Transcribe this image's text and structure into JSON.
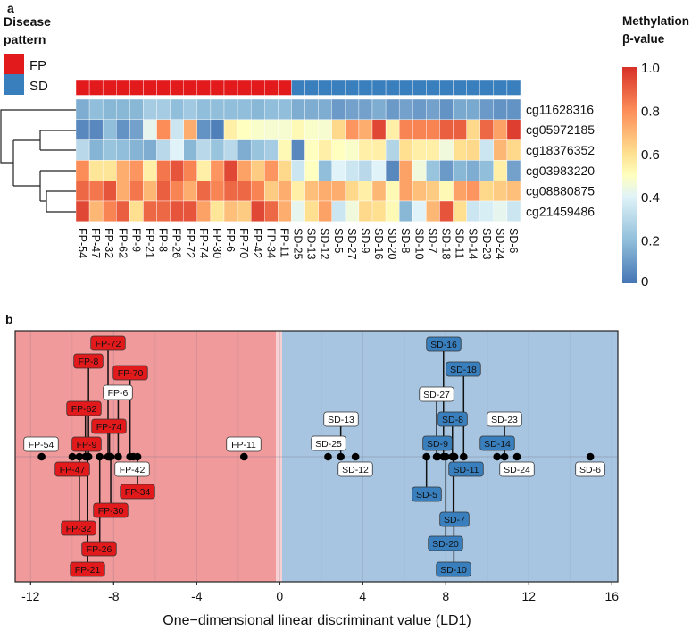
{
  "chart_data": [
    {
      "type": "heatmap",
      "panel_label": "a",
      "legend_title": [
        "Disease",
        "pattern"
      ],
      "groups": [
        {
          "name": "FP",
          "color": "#e31a1c"
        },
        {
          "name": "SD",
          "color": "#3a7fbd"
        }
      ],
      "colorbar_title": [
        "Methylation",
        "β-value"
      ],
      "colorbar_ticks": [
        "1.0",
        "0.8",
        "0.6",
        "0.4",
        "0.2",
        "0"
      ],
      "colorbar_range": [
        0,
        1
      ],
      "columns": [
        "FP-54",
        "FP-47",
        "FP-32",
        "FP-62",
        "FP-9",
        "FP-21",
        "FP-8",
        "FP-26",
        "FP-72",
        "FP-74",
        "FP-30",
        "FP-6",
        "FP-70",
        "FP-42",
        "FP-34",
        "FP-11",
        "SD-25",
        "SD-13",
        "SD-12",
        "SD-5",
        "SD-27",
        "SD-9",
        "SD-16",
        "SD-20",
        "SD-8",
        "SD-10",
        "SD-7",
        "SD-18",
        "SD-11",
        "SD-14",
        "SD-23",
        "SD-24",
        "SD-6"
      ],
      "column_groups": [
        "FP",
        "FP",
        "FP",
        "FP",
        "FP",
        "FP",
        "FP",
        "FP",
        "FP",
        "FP",
        "FP",
        "FP",
        "FP",
        "FP",
        "FP",
        "FP",
        "SD",
        "SD",
        "SD",
        "SD",
        "SD",
        "SD",
        "SD",
        "SD",
        "SD",
        "SD",
        "SD",
        "SD",
        "SD",
        "SD",
        "SD",
        "SD",
        "SD"
      ],
      "rows": [
        "cg11628316",
        "cg05972185",
        "cg18376352",
        "cg03983220",
        "cg08880875",
        "cg21459486"
      ],
      "values": [
        [
          0.15,
          0.2,
          0.18,
          0.18,
          0.18,
          0.25,
          0.25,
          0.2,
          0.24,
          0.2,
          0.2,
          0.2,
          0.2,
          0.18,
          0.2,
          0.2,
          0.15,
          0.15,
          0.15,
          0.1,
          0.12,
          0.12,
          0.15,
          0.1,
          0.12,
          0.1,
          0.12,
          0.08,
          0.14,
          0.14,
          0.1,
          0.08,
          0.08
        ],
        [
          0.05,
          0.05,
          0.2,
          0.08,
          0.12,
          0.42,
          0.8,
          0.35,
          0.72,
          0.08,
          0.03,
          0.55,
          0.5,
          0.48,
          0.47,
          0.47,
          0.52,
          0.48,
          0.47,
          0.62,
          0.78,
          0.72,
          0.95,
          0.55,
          0.82,
          0.82,
          0.82,
          0.9,
          0.9,
          0.62,
          0.88,
          0.75,
          0.97
        ],
        [
          0.3,
          0.17,
          0.22,
          0.2,
          0.17,
          0.15,
          0.3,
          0.4,
          0.18,
          0.3,
          0.22,
          0.3,
          0.15,
          0.22,
          0.25,
          0.52,
          0.05,
          0.5,
          0.55,
          0.5,
          0.48,
          0.55,
          0.55,
          0.28,
          0.6,
          0.55,
          0.55,
          0.45,
          0.6,
          0.62,
          0.35,
          0.7,
          0.62
        ],
        [
          0.8,
          0.58,
          0.58,
          0.72,
          0.78,
          0.55,
          0.85,
          0.92,
          0.82,
          0.55,
          0.78,
          0.95,
          0.75,
          0.65,
          0.78,
          0.62,
          0.35,
          0.5,
          0.2,
          0.4,
          0.35,
          0.3,
          0.4,
          0.05,
          0.75,
          0.45,
          0.22,
          0.1,
          0.18,
          0.15,
          0.2,
          0.55,
          0.12
        ],
        [
          0.88,
          0.85,
          0.92,
          0.72,
          0.85,
          0.7,
          0.9,
          0.82,
          0.72,
          0.88,
          0.82,
          0.88,
          0.88,
          0.82,
          0.65,
          0.72,
          0.55,
          0.68,
          0.72,
          0.72,
          0.62,
          0.55,
          0.7,
          0.52,
          0.75,
          0.68,
          0.65,
          0.52,
          0.75,
          0.78,
          0.62,
          0.65,
          0.68
        ],
        [
          0.95,
          0.7,
          0.82,
          0.9,
          0.6,
          0.88,
          0.88,
          0.92,
          0.92,
          0.75,
          0.58,
          0.68,
          0.65,
          0.95,
          0.88,
          0.72,
          0.42,
          0.6,
          0.75,
          0.35,
          0.45,
          0.62,
          0.6,
          0.52,
          0.18,
          0.4,
          0.7,
          0.92,
          0.6,
          0.35,
          0.38,
          0.42,
          0.35
        ]
      ]
    },
    {
      "type": "scatter",
      "panel_label": "b",
      "xlabel": "One−dimensional linear discriminant value (LD1)",
      "xlim": [
        -13,
        16.3
      ],
      "xticks": [
        "-12",
        "-8",
        "-4",
        "0",
        "4",
        "8",
        "12",
        "16"
      ],
      "grid": true,
      "region_colors": {
        "FP": "#f19a9b",
        "SD": "#a7c5e1"
      },
      "points": [
        {
          "label": "FP-54",
          "group": "FP",
          "ld1": -11.47,
          "filled": false
        },
        {
          "label": "FP-47",
          "group": "FP",
          "ld1": -9.99,
          "filled": true
        },
        {
          "label": "FP-32",
          "group": "FP",
          "ld1": -9.65,
          "filled": true
        },
        {
          "label": "FP-62",
          "group": "FP",
          "ld1": -9.36,
          "filled": true
        },
        {
          "label": "FP-9",
          "group": "FP",
          "ld1": -9.33,
          "filled": true
        },
        {
          "label": "FP-21",
          "group": "FP",
          "ld1": -9.25,
          "filled": true
        },
        {
          "label": "FP-8",
          "group": "FP",
          "ld1": -9.21,
          "filled": true
        },
        {
          "label": "FP-26",
          "group": "FP",
          "ld1": -8.67,
          "filled": true
        },
        {
          "label": "FP-72",
          "group": "FP",
          "ld1": -8.27,
          "filled": true
        },
        {
          "label": "FP-74",
          "group": "FP",
          "ld1": -8.2,
          "filled": true
        },
        {
          "label": "FP-30",
          "group": "FP",
          "ld1": -8.14,
          "filled": true
        },
        {
          "label": "FP-6",
          "group": "FP",
          "ld1": -7.78,
          "filled": false
        },
        {
          "label": "FP-70",
          "group": "FP",
          "ld1": -7.21,
          "filled": true
        },
        {
          "label": "FP-42",
          "group": "FP",
          "ld1": -7.05,
          "filled": false
        },
        {
          "label": "FP-34",
          "group": "FP",
          "ld1": -6.85,
          "filled": true
        },
        {
          "label": "FP-11",
          "group": "FP",
          "ld1": -1.72,
          "filled": false
        },
        {
          "label": "SD-25",
          "group": "SD",
          "ld1": 2.33,
          "filled": false
        },
        {
          "label": "SD-13",
          "group": "SD",
          "ld1": 2.94,
          "filled": false
        },
        {
          "label": "SD-12",
          "group": "SD",
          "ld1": 3.65,
          "filled": false
        },
        {
          "label": "SD-5",
          "group": "SD",
          "ld1": 7.07,
          "filled": true
        },
        {
          "label": "SD-27",
          "group": "SD",
          "ld1": 7.56,
          "filled": false
        },
        {
          "label": "SD-9",
          "group": "SD",
          "ld1": 7.6,
          "filled": true
        },
        {
          "label": "SD-16",
          "group": "SD",
          "ld1": 7.89,
          "filled": true
        },
        {
          "label": "SD-20",
          "group": "SD",
          "ld1": 8.0,
          "filled": true
        },
        {
          "label": "SD-8",
          "group": "SD",
          "ld1": 8.32,
          "filled": true
        },
        {
          "label": "SD-7",
          "group": "SD",
          "ld1": 8.36,
          "filled": true
        },
        {
          "label": "SD-10",
          "group": "SD",
          "ld1": 8.39,
          "filled": true
        },
        {
          "label": "SD-11",
          "group": "SD",
          "ld1": 8.42,
          "filled": true
        },
        {
          "label": "SD-18",
          "group": "SD",
          "ld1": 8.86,
          "filled": true
        },
        {
          "label": "SD-14",
          "group": "SD",
          "ld1": 10.47,
          "filled": true
        },
        {
          "label": "SD-23",
          "group": "SD",
          "ld1": 10.83,
          "filled": false
        },
        {
          "label": "SD-24",
          "group": "SD",
          "ld1": 11.43,
          "filled": false
        },
        {
          "label": "SD-6",
          "group": "SD",
          "ld1": 14.96,
          "filled": false
        }
      ]
    }
  ]
}
